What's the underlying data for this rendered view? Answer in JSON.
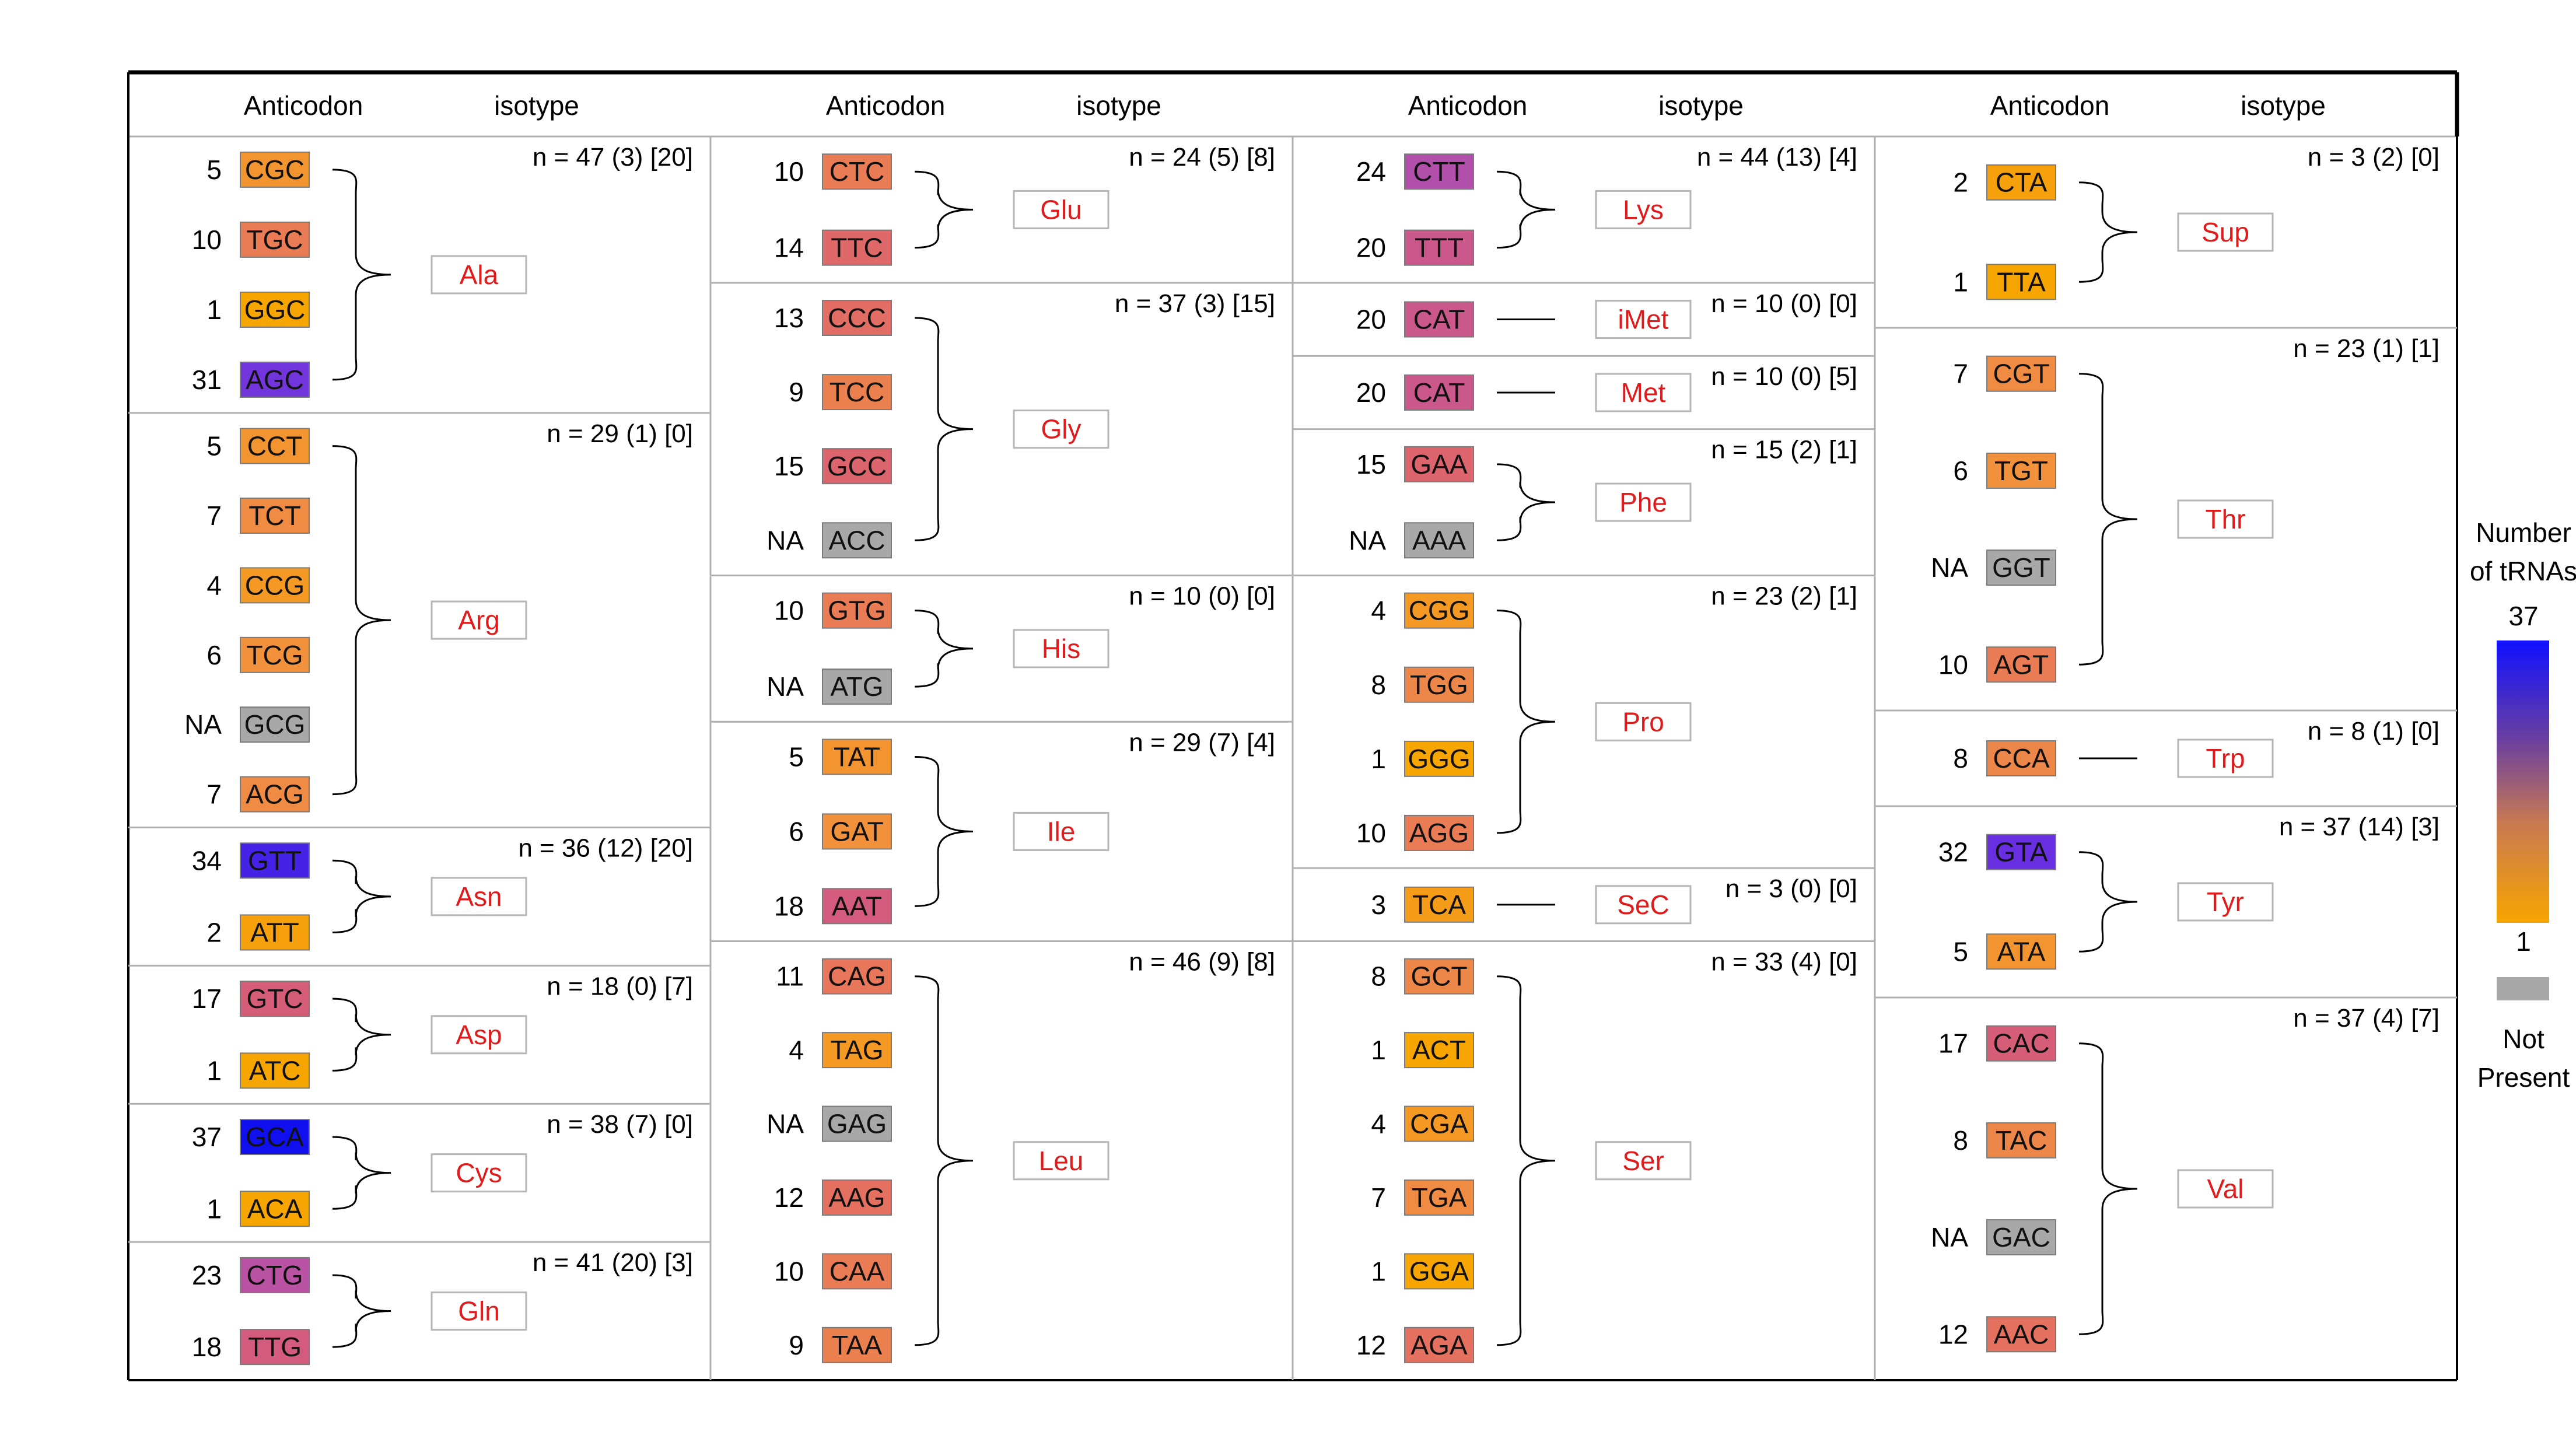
{
  "colors": {
    "not_present": "#a8a8a8",
    "scale": [
      "#f7a500",
      "#f1903e",
      "#e6745c",
      "#d85e74",
      "#c45595",
      "#9c4bc4",
      "#6a30e0",
      "#1010ee"
    ],
    "isotype_text": "#e01b1b"
  },
  "header": {
    "anticodon": "Anticodon",
    "isotype": "isotype"
  },
  "legend": {
    "title_line1": "Number",
    "title_line2": "of tRNAs",
    "max": "37",
    "min": "1",
    "not_present_line1": "Not",
    "not_present_line2": "Present"
  },
  "columns": [
    {
      "groups": [
        {
          "isotype": "Ala",
          "counts": "n = 47 (3) [20]",
          "anticodons": [
            {
              "code": "CGC",
              "num": "5",
              "value": 5
            },
            {
              "code": "TGC",
              "num": "10",
              "value": 10
            },
            {
              "code": "GGC",
              "num": "1",
              "value": 1
            },
            {
              "code": "AGC",
              "num": "31",
              "value": 31
            }
          ]
        },
        {
          "isotype": "Arg",
          "counts": "n = 29 (1) [0]",
          "anticodons": [
            {
              "code": "CCT",
              "num": "5",
              "value": 5
            },
            {
              "code": "TCT",
              "num": "7",
              "value": 7
            },
            {
              "code": "CCG",
              "num": "4",
              "value": 4
            },
            {
              "code": "TCG",
              "num": "6",
              "value": 6
            },
            {
              "code": "GCG",
              "num": "NA",
              "value": null
            },
            {
              "code": "ACG",
              "num": "7",
              "value": 7
            }
          ]
        },
        {
          "isotype": "Asn",
          "counts": "n = 36 (12) [20]",
          "anticodons": [
            {
              "code": "GTT",
              "num": "34",
              "value": 34
            },
            {
              "code": "ATT",
              "num": "2",
              "value": 2
            }
          ]
        },
        {
          "isotype": "Asp",
          "counts": "n = 18 (0) [7]",
          "anticodons": [
            {
              "code": "GTC",
              "num": "17",
              "value": 17
            },
            {
              "code": "ATC",
              "num": "1",
              "value": 1
            }
          ]
        },
        {
          "isotype": "Cys",
          "counts": "n = 38 (7) [0]",
          "anticodons": [
            {
              "code": "GCA",
              "num": "37",
              "value": 37
            },
            {
              "code": "ACA",
              "num": "1",
              "value": 1
            }
          ]
        },
        {
          "isotype": "Gln",
          "counts": "n = 41 (20) [3]",
          "anticodons": [
            {
              "code": "CTG",
              "num": "23",
              "value": 23
            },
            {
              "code": "TTG",
              "num": "18",
              "value": 18
            }
          ]
        }
      ]
    },
    {
      "groups": [
        {
          "isotype": "Glu",
          "counts": "n = 24 (5) [8]",
          "anticodons": [
            {
              "code": "CTC",
              "num": "10",
              "value": 10
            },
            {
              "code": "TTC",
              "num": "14",
              "value": 14
            }
          ]
        },
        {
          "isotype": "Gly",
          "counts": "n = 37 (3) [15]",
          "anticodons": [
            {
              "code": "CCC",
              "num": "13",
              "value": 13
            },
            {
              "code": "TCC",
              "num": "9",
              "value": 9
            },
            {
              "code": "GCC",
              "num": "15",
              "value": 15
            },
            {
              "code": "ACC",
              "num": "NA",
              "value": null
            }
          ]
        },
        {
          "isotype": "His",
          "counts": "n = 10 (0) [0]",
          "anticodons": [
            {
              "code": "GTG",
              "num": "10",
              "value": 10
            },
            {
              "code": "ATG",
              "num": "NA",
              "value": null
            }
          ]
        },
        {
          "isotype": "Ile",
          "counts": "n = 29 (7) [4]",
          "anticodons": [
            {
              "code": "TAT",
              "num": "5",
              "value": 5
            },
            {
              "code": "GAT",
              "num": "6",
              "value": 6
            },
            {
              "code": "AAT",
              "num": "18",
              "value": 18
            }
          ]
        },
        {
          "isotype": "Leu",
          "counts": "n = 46 (9) [8]",
          "anticodons": [
            {
              "code": "CAG",
              "num": "11",
              "value": 11
            },
            {
              "code": "TAG",
              "num": "4",
              "value": 4
            },
            {
              "code": "GAG",
              "num": "NA",
              "value": null
            },
            {
              "code": "AAG",
              "num": "12",
              "value": 12
            },
            {
              "code": "CAA",
              "num": "10",
              "value": 10
            },
            {
              "code": "TAA",
              "num": "9",
              "value": 9
            }
          ]
        }
      ]
    },
    {
      "groups": [
        {
          "isotype": "Lys",
          "counts": "n = 44 (13) [4]",
          "anticodons": [
            {
              "code": "CTT",
              "num": "24",
              "value": 24
            },
            {
              "code": "TTT",
              "num": "20",
              "value": 20
            }
          ]
        },
        {
          "isotype": "iMet",
          "counts": "n = 10 (0) [0]",
          "anticodons": [
            {
              "code": "CAT",
              "num": "20",
              "value": 20
            }
          ]
        },
        {
          "isotype": "Met",
          "counts": "n = 10 (0) [5]",
          "anticodons": [
            {
              "code": "CAT",
              "num": "20",
              "value": 20
            }
          ]
        },
        {
          "isotype": "Phe",
          "counts": "n = 15 (2) [1]",
          "anticodons": [
            {
              "code": "GAA",
              "num": "15",
              "value": 15
            },
            {
              "code": "AAA",
              "num": "NA",
              "value": null
            }
          ]
        },
        {
          "isotype": "Pro",
          "counts": "n = 23 (2) [1]",
          "anticodons": [
            {
              "code": "CGG",
              "num": "4",
              "value": 4
            },
            {
              "code": "TGG",
              "num": "8",
              "value": 8
            },
            {
              "code": "GGG",
              "num": "1",
              "value": 1
            },
            {
              "code": "AGG",
              "num": "10",
              "value": 10
            }
          ]
        },
        {
          "isotype": "SeC",
          "counts": "n = 3 (0) [0]",
          "anticodons": [
            {
              "code": "TCA",
              "num": "3",
              "value": 3
            }
          ]
        },
        {
          "isotype": "Ser",
          "counts": "n = 33 (4) [0]",
          "anticodons": [
            {
              "code": "GCT",
              "num": "8",
              "value": 8
            },
            {
              "code": "ACT",
              "num": "1",
              "value": 1
            },
            {
              "code": "CGA",
              "num": "4",
              "value": 4
            },
            {
              "code": "TGA",
              "num": "7",
              "value": 7
            },
            {
              "code": "GGA",
              "num": "1",
              "value": 1
            },
            {
              "code": "AGA",
              "num": "12",
              "value": 12
            }
          ]
        }
      ]
    },
    {
      "groups": [
        {
          "isotype": "Sup",
          "counts": "n = 3 (2) [0]",
          "anticodons": [
            {
              "code": "CTA",
              "num": "2",
              "value": 2
            },
            {
              "code": "TTA",
              "num": "1",
              "value": 1
            }
          ]
        },
        {
          "isotype": "Thr",
          "counts": "n = 23 (1) [1]",
          "anticodons": [
            {
              "code": "CGT",
              "num": "7",
              "value": 7
            },
            {
              "code": "TGT",
              "num": "6",
              "value": 6
            },
            {
              "code": "GGT",
              "num": "NA",
              "value": null
            },
            {
              "code": "AGT",
              "num": "10",
              "value": 10
            }
          ]
        },
        {
          "isotype": "Trp",
          "counts": "n = 8 (1) [0]",
          "anticodons": [
            {
              "code": "CCA",
              "num": "8",
              "value": 8
            }
          ]
        },
        {
          "isotype": "Tyr",
          "counts": "n = 37 (14) [3]",
          "anticodons": [
            {
              "code": "GTA",
              "num": "32",
              "value": 32
            },
            {
              "code": "ATA",
              "num": "5",
              "value": 5
            }
          ]
        },
        {
          "isotype": "Val",
          "counts": "n = 37 (4) [7]",
          "anticodons": [
            {
              "code": "CAC",
              "num": "17",
              "value": 17
            },
            {
              "code": "TAC",
              "num": "8",
              "value": 8
            },
            {
              "code": "GAC",
              "num": "NA",
              "value": null
            },
            {
              "code": "AAC",
              "num": "12",
              "value": 12
            }
          ]
        }
      ]
    }
  ]
}
